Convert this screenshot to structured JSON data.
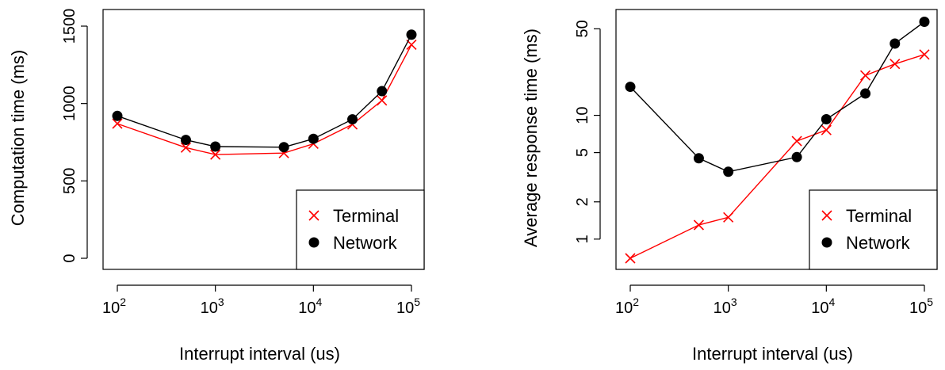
{
  "colors": {
    "terminal": "#ff0000",
    "network": "#000000",
    "axis": "#000000",
    "background": "#ffffff"
  },
  "chart_data": [
    {
      "type": "line",
      "xscale": "log",
      "yscale": "linear",
      "xlabel": "Interrupt interval (us)",
      "ylabel": "Computation time (ms)",
      "xlim": [
        100,
        100000
      ],
      "ylim": [
        0,
        1500
      ],
      "xticks": [
        {
          "value": 100,
          "base": "10",
          "exp": "2"
        },
        {
          "value": 1000,
          "base": "10",
          "exp": "3"
        },
        {
          "value": 10000,
          "base": "10",
          "exp": "4"
        },
        {
          "value": 100000,
          "base": "10",
          "exp": "5"
        }
      ],
      "yticks": [
        {
          "value": 0,
          "label": "0"
        },
        {
          "value": 500,
          "label": "500"
        },
        {
          "value": 1000,
          "label": "1000"
        },
        {
          "value": 1500,
          "label": "1500"
        }
      ],
      "grid": false,
      "legend": "bottom-right",
      "x": [
        100,
        500,
        1000,
        5000,
        10000,
        25000,
        50000,
        100000
      ],
      "series": [
        {
          "name": "Terminal",
          "marker": "cross",
          "color": "#ff0000",
          "values": [
            870,
            715,
            670,
            680,
            740,
            865,
            1020,
            1380
          ]
        },
        {
          "name": "Network",
          "marker": "dot",
          "color": "#000000",
          "values": [
            920,
            765,
            722,
            718,
            772,
            898,
            1080,
            1445
          ]
        }
      ]
    },
    {
      "type": "line",
      "xscale": "log",
      "yscale": "log",
      "xlabel": "Interrupt interval (us)",
      "ylabel": "Average response time (ms)",
      "xlim": [
        100,
        100000
      ],
      "ylim": [
        0.7,
        60
      ],
      "xticks": [
        {
          "value": 100,
          "base": "10",
          "exp": "2"
        },
        {
          "value": 1000,
          "base": "10",
          "exp": "3"
        },
        {
          "value": 10000,
          "base": "10",
          "exp": "4"
        },
        {
          "value": 100000,
          "base": "10",
          "exp": "5"
        }
      ],
      "yticks": [
        {
          "value": 1,
          "label": "1"
        },
        {
          "value": 2,
          "label": "2"
        },
        {
          "value": 5,
          "label": "5"
        },
        {
          "value": 10,
          "label": "10"
        },
        {
          "value": 50,
          "label": "50"
        }
      ],
      "grid": false,
      "legend": "bottom-right",
      "x": [
        100,
        500,
        1000,
        5000,
        10000,
        25000,
        50000,
        100000
      ],
      "series": [
        {
          "name": "Terminal",
          "marker": "cross",
          "color": "#ff0000",
          "values": [
            0.7,
            1.3,
            1.5,
            6.2,
            7.6,
            21,
            26,
            31
          ]
        },
        {
          "name": "Network",
          "marker": "dot",
          "color": "#000000",
          "values": [
            17,
            4.5,
            3.5,
            4.6,
            9.3,
            15,
            38,
            57
          ]
        }
      ]
    }
  ]
}
